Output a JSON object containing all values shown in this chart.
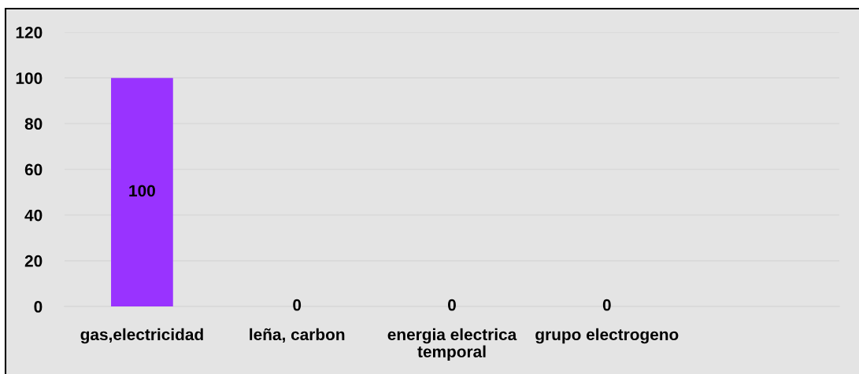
{
  "chart_data": {
    "type": "bar",
    "categories": [
      "gas,electricidad",
      "leña, carbon",
      "energia electrica temporal",
      "grupo electrogeno",
      null
    ],
    "values": [
      100,
      0,
      0,
      0,
      null
    ],
    "color": "#9933ff",
    "ylim": [
      0,
      120
    ],
    "yticks": [
      0,
      20,
      40,
      60,
      80,
      100,
      120
    ],
    "grid": "y",
    "data_labels": true
  }
}
